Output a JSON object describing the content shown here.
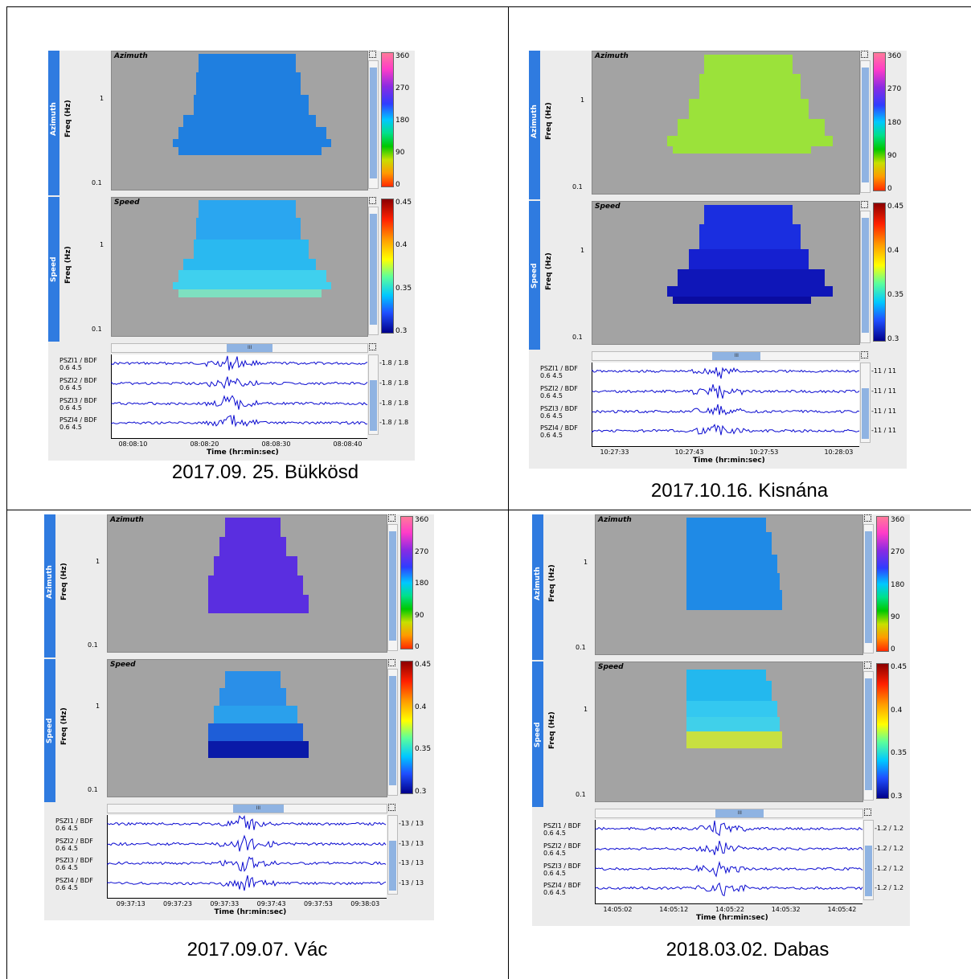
{
  "common": {
    "azimuth_title": "Azimuth",
    "speed_title": "Speed",
    "azimuth_tab": "Azimuth",
    "speed_tab": "Speed",
    "freq_label": "Freq (Hz)",
    "freq_tick_1": "1",
    "freq_tick_01": "0.1",
    "time_axis_title": "Time (hr:min:sec)",
    "azimuth_scale": [
      "360",
      "270",
      "180",
      "90",
      "0"
    ],
    "speed_scale": [
      "0.45",
      "0.4",
      "0.35",
      "0.3"
    ],
    "trace_filter": "0.6 4.5",
    "scroll_grip": "III"
  },
  "panels": [
    {
      "caption": "2017.09. 25. Bükkösd",
      "traces": [
        "PSZI1 / BDF",
        "PSZI2 / BDF",
        "PSZI3 / BDF",
        "PSZI4 / BDF"
      ],
      "amplitude": "-1.8 / 1.8",
      "time_ticks": [
        "08:08:10",
        "08:08:20",
        "08:08:30",
        "08:08:40"
      ],
      "azimuth_color": "#1f7fe0"
    },
    {
      "caption": "2017.10.16. Kisnána",
      "traces": [
        "PSZI1 / BDF",
        "PSZI2 / BDF",
        "PSZI3 / BDF",
        "PSZI4 / BDF"
      ],
      "amplitude": "-11 / 11",
      "time_ticks": [
        "10:27:33",
        "10:27:43",
        "10:27:53",
        "10:28:03"
      ],
      "azimuth_color": "#9be23a"
    },
    {
      "caption": "2017.09.07. Vác",
      "traces": [
        "PSZI1 / BDF",
        "PSZI2 / BDF",
        "PSZI3 / BDF",
        "PSZI4 / BDF"
      ],
      "amplitude": "-13 / 13",
      "time_ticks": [
        "09:37:13",
        "09:37:23",
        "09:37:33",
        "09:37:43",
        "09:37:53",
        "09:38:03"
      ],
      "azimuth_color": "#5a2ee0"
    },
    {
      "caption": "2018.03.02. Dabas",
      "traces": [
        "PSZI1 / BDF",
        "PSZI2 / BDF",
        "PSZI3 / BDF",
        "PSZI4 / BDF"
      ],
      "amplitude": "-1.2 / 1.2",
      "time_ticks": [
        "14:05:02",
        "14:05:12",
        "14:05:22",
        "14:05:32",
        "14:05:42"
      ],
      "azimuth_color": "#1f8ae6"
    }
  ]
}
